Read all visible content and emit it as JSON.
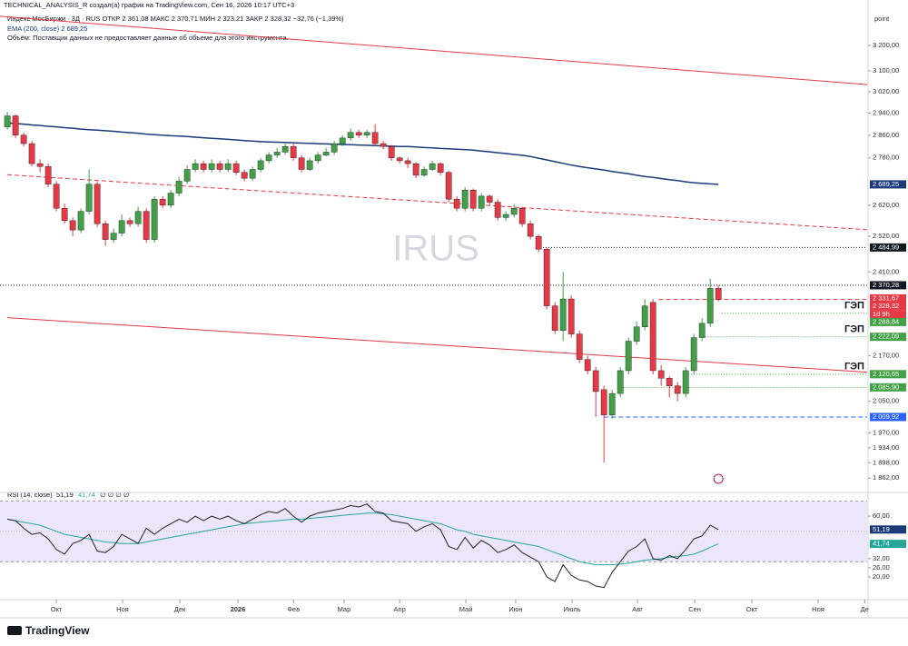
{
  "chart_data": {
    "type": "candlestick",
    "attribution": "TECHNICAL_ANALYSIS_R создал(а) график на TradingView.com, Сен 16, 2026 10:17 UTC+3",
    "legend": "Индекс МосБиржи · 3Д · RUS   ОТКР 2 361,08   МАКС 2 370,71   МИН 2 323,21   ЗАКР 2 328,32   −32,76 (−1,39%)",
    "ema_legend": "EMA (200, close)   2 689,25",
    "volume_note": "Объём: Поставщик данных не предоставляет данные об объеме для этого инструмента.",
    "watermark": "IRUS",
    "unit": "point",
    "countdown": "1d 9h",
    "logo": "TradingView",
    "log_scale": true,
    "up_color": "#43a047",
    "down_color": "#e53945",
    "xlim": [
      -0.9,
      105.2
    ],
    "ylim": [
      1833,
      3349
    ],
    "xticks": [
      {
        "value": 6,
        "label": "Окт"
      },
      {
        "value": 14.1,
        "label": "Ноя"
      },
      {
        "value": 21.1,
        "label": "Дек"
      },
      {
        "value": 28.2,
        "label": "2026"
      },
      {
        "value": 35,
        "label": "Фев"
      },
      {
        "value": 41.2,
        "label": "Мар"
      },
      {
        "value": 48,
        "label": "Апр"
      },
      {
        "value": 56.1,
        "label": "Май"
      },
      {
        "value": 62.2,
        "label": "Июн"
      },
      {
        "value": 69.1,
        "label": "Июль"
      },
      {
        "value": 77.1,
        "label": "Авг"
      },
      {
        "value": 84.1,
        "label": "Сен"
      },
      {
        "value": 91.1,
        "label": "Окт"
      },
      {
        "value": 99.2,
        "label": "Ноя"
      },
      {
        "value": 104.9,
        "label": "Де"
      }
    ],
    "yticks": [
      {
        "value": 1862,
        "label": "1 862,00"
      },
      {
        "value": 1898,
        "label": "1 898,00"
      },
      {
        "value": 1934,
        "label": "1 934,00"
      },
      {
        "value": 1970,
        "label": "1 970,00"
      },
      {
        "value": 2050,
        "label": "2 050,00"
      },
      {
        "value": 2170,
        "label": "2 170,00"
      },
      {
        "value": 2410,
        "label": "2 410,00"
      },
      {
        "value": 2520,
        "label": "2 520,00"
      },
      {
        "value": 2620,
        "label": "2 620,00"
      },
      {
        "value": 2780,
        "label": "2 780,00"
      },
      {
        "value": 2860,
        "label": "2 860,00"
      },
      {
        "value": 2940,
        "label": "2 940,00"
      },
      {
        "value": 3020,
        "label": "3 020,00"
      },
      {
        "value": 3100,
        "label": "3 100,00"
      },
      {
        "value": 3200,
        "label": "3 200,00"
      }
    ],
    "open": [
      2890,
      2930,
      2860,
      2830,
      2760,
      2750,
      2690,
      2610,
      2570,
      2540,
      2600,
      2690,
      2560,
      2510,
      2530,
      2570,
      2560,
      2600,
      2510,
      2640,
      2620,
      2660,
      2700,
      2740,
      2760,
      2740,
      2760,
      2740,
      2760,
      2730,
      2710,
      2740,
      2770,
      2790,
      2800,
      2820,
      2780,
      2740,
      2770,
      2790,
      2800,
      2830,
      2850,
      2870,
      2860,
      2870,
      2830,
      2820,
      2780,
      2770,
      2760,
      2720,
      2740,
      2760,
      2730,
      2640,
      2610,
      2670,
      2610,
      2650,
      2630,
      2580,
      2590,
      2610,
      2560,
      2520,
      2480,
      2310,
      2240,
      2330,
      2230,
      2160,
      2130,
      2080,
      2015,
      2070,
      2130,
      2210,
      2250,
      2320,
      2130,
      2110,
      2090,
      2070,
      2130,
      2220,
      2260,
      2361.08
    ],
    "high": [
      2945,
      2935,
      2870,
      2840,
      2775,
      2760,
      2700,
      2625,
      2580,
      2610,
      2740,
      2700,
      2570,
      2545,
      2590,
      2580,
      2615,
      2610,
      2650,
      2650,
      2670,
      2715,
      2755,
      2775,
      2770,
      2775,
      2770,
      2775,
      2770,
      2740,
      2750,
      2780,
      2800,
      2815,
      2835,
      2830,
      2790,
      2780,
      2800,
      2815,
      2840,
      2860,
      2885,
      2880,
      2880,
      2900,
      2840,
      2825,
      2785,
      2780,
      2765,
      2750,
      2770,
      2765,
      2735,
      2650,
      2680,
      2675,
      2660,
      2655,
      2640,
      2600,
      2625,
      2615,
      2570,
      2525,
      2485,
      2320,
      2410,
      2340,
      2240,
      2170,
      2140,
      2090,
      2080,
      2140,
      2220,
      2265,
      2330,
      2330,
      2145,
      2115,
      2100,
      2140,
      2230,
      2275,
      2390,
      2370.71
    ],
    "low": [
      2880,
      2850,
      2820,
      2750,
      2730,
      2680,
      2600,
      2560,
      2520,
      2530,
      2590,
      2550,
      2490,
      2500,
      2520,
      2550,
      2550,
      2500,
      2500,
      2610,
      2610,
      2650,
      2690,
      2730,
      2730,
      2730,
      2730,
      2730,
      2720,
      2700,
      2700,
      2730,
      2760,
      2780,
      2790,
      2770,
      2730,
      2735,
      2760,
      2785,
      2790,
      2820,
      2840,
      2850,
      2850,
      2820,
      2810,
      2770,
      2760,
      2745,
      2710,
      2715,
      2735,
      2720,
      2630,
      2600,
      2600,
      2600,
      2600,
      2620,
      2570,
      2570,
      2580,
      2550,
      2510,
      2470,
      2300,
      2230,
      2210,
      2220,
      2150,
      2120,
      2010,
      1898,
      2005,
      2060,
      2120,
      2200,
      2240,
      2120,
      2090,
      2060,
      2050,
      2060,
      2120,
      2210,
      2250,
      2323.21
    ],
    "close": [
      2930,
      2860,
      2830,
      2760,
      2750,
      2690,
      2610,
      2570,
      2540,
      2600,
      2690,
      2560,
      2510,
      2530,
      2570,
      2560,
      2600,
      2510,
      2640,
      2620,
      2660,
      2700,
      2740,
      2760,
      2740,
      2760,
      2740,
      2760,
      2730,
      2710,
      2740,
      2770,
      2790,
      2800,
      2820,
      2780,
      2740,
      2770,
      2790,
      2800,
      2830,
      2850,
      2870,
      2860,
      2870,
      2830,
      2820,
      2780,
      2770,
      2760,
      2720,
      2740,
      2760,
      2730,
      2640,
      2610,
      2670,
      2610,
      2650,
      2630,
      2580,
      2590,
      2610,
      2560,
      2520,
      2480,
      2310,
      2240,
      2330,
      2230,
      2160,
      2130,
      2075,
      2015,
      2070,
      2130,
      2210,
      2250,
      2310,
      2130,
      2110,
      2090,
      2070,
      2130,
      2220,
      2260,
      2361.08,
      2328.32
    ],
    "ema": {
      "color": "#1a3a7a",
      "values": [
        2905,
        2902,
        2900,
        2897,
        2895,
        2892,
        2890,
        2887,
        2885,
        2882,
        2880,
        2878,
        2876,
        2874,
        2871,
        2869,
        2867,
        2864,
        2862,
        2860,
        2858,
        2857,
        2855,
        2853,
        2851,
        2849,
        2847,
        2845,
        2843,
        2841,
        2839,
        2837,
        2836,
        2835,
        2834,
        2833,
        2832,
        2831,
        2830,
        2829,
        2828,
        2827,
        2826,
        2825,
        2824,
        2823,
        2822,
        2821,
        2820,
        2820,
        2818,
        2816,
        2815,
        2813,
        2812,
        2810,
        2809,
        2807,
        2804,
        2801,
        2798,
        2795,
        2792,
        2789,
        2785,
        2779,
        2773,
        2767,
        2761,
        2755,
        2750,
        2746,
        2742,
        2738,
        2733,
        2729,
        2725,
        2720,
        2716,
        2713,
        2709,
        2705,
        2702,
        2698,
        2695,
        2693,
        2691,
        2689.25
      ]
    },
    "trend_lines": [
      {
        "color": "#e53945",
        "style": "solid",
        "x": [
          -0.9,
          105.2
        ],
        "y": [
          3319,
          3047
        ]
      },
      {
        "color": "#e53945",
        "style": "dashed",
        "x": [
          0,
          105.2
        ],
        "y": [
          2722,
          2541
        ]
      },
      {
        "color": "#e53945",
        "style": "solid",
        "x": [
          0,
          105.2
        ],
        "y": [
          2276,
          2126
        ]
      }
    ],
    "price_lines": [
      {
        "value": 2689.25,
        "label": "2 689,25",
        "color": "#1a3a7a",
        "style": "none",
        "from": 87
      },
      {
        "value": 2484.99,
        "label": "2 484,99",
        "color": "#131722",
        "style": "dotted",
        "from": 65.2
      },
      {
        "value": 2370.28,
        "label": "2 370,28",
        "color": "#131722",
        "style": "dotted",
        "from": -0.9
      },
      {
        "value": 2331.67,
        "label": "2 331,67",
        "color": "#e53945",
        "style": "none",
        "from": 87
      },
      {
        "value": 2328.32,
        "label": "2 328,32",
        "color": "#e53945",
        "style": "dashed",
        "from": 79.7
      },
      {
        "value": 2288.84,
        "label": "2 288,84",
        "color": "#43a047",
        "style": "dotted",
        "from": 87.4
      },
      {
        "value": 2222.09,
        "label": "2 222,09",
        "color": "#43a047",
        "style": "dotted",
        "from": 84.7
      },
      {
        "value": 2120.65,
        "label": "2 120,65",
        "color": "#43a047",
        "style": "dotted",
        "from": 83
      },
      {
        "value": 2085.9,
        "label": "2 085,90",
        "color": "#43a047",
        "style": "dotted",
        "from": 74.7
      },
      {
        "value": 2009.92,
        "label": "2 009,92",
        "color": "#2962ff",
        "style": "dashed",
        "from": 73
      }
    ],
    "annotations": [
      "ГЭП",
      "ГЭП",
      "ГЭП"
    ],
    "rsi": {
      "legend": "RSI (14, close)",
      "value_label": "51,19",
      "ma_label": "41,74",
      "extra": "∅ ∅ ∅ ∅",
      "color": "#222",
      "ma_color": "#26a6a0",
      "band_color": "#ece6fa",
      "band": [
        30,
        70
      ],
      "ylim": [
        8,
        72
      ],
      "yticks": [
        {
          "value": 60,
          "label": "60,00"
        },
        {
          "value": 32,
          "label": "32,00"
        },
        {
          "value": 26,
          "label": "26,00"
        },
        {
          "value": 20,
          "label": "20,00"
        }
      ],
      "values": [
        58,
        57,
        52,
        48,
        49,
        45,
        38,
        35,
        42,
        44,
        48,
        37,
        36,
        40,
        48,
        45,
        42,
        52,
        48,
        52,
        55,
        58,
        56,
        60,
        57,
        60,
        58,
        60,
        57,
        55,
        58,
        61,
        63,
        62,
        65,
        60,
        56,
        60,
        62,
        63,
        64,
        65,
        67,
        66,
        68,
        63,
        62,
        57,
        56,
        55,
        50,
        53,
        55,
        51,
        40,
        38,
        46,
        39,
        44,
        41,
        36,
        38,
        41,
        36,
        33,
        30,
        20,
        17,
        28,
        21,
        18,
        17,
        14,
        13,
        23,
        30,
        37,
        40,
        45,
        32,
        31,
        34,
        32,
        38,
        45,
        47,
        54,
        51.19
      ],
      "ma": [
        58,
        57,
        56,
        55,
        54,
        52,
        50,
        48,
        47,
        46,
        45,
        44,
        43,
        42.5,
        42,
        42,
        42,
        43,
        44,
        45,
        46,
        47,
        48,
        49,
        50,
        51,
        52,
        53,
        54,
        55,
        55.5,
        56,
        56.5,
        57,
        57.5,
        58,
        58,
        58.5,
        59,
        59.5,
        60,
        60.5,
        61,
        61.5,
        62,
        62,
        61.5,
        61,
        60,
        59,
        58,
        57,
        56,
        55,
        53,
        51,
        50,
        48,
        47,
        46,
        45,
        44,
        43,
        42,
        41,
        40,
        38,
        36,
        34,
        32,
        30,
        29,
        28,
        28,
        28,
        28.5,
        29,
        30,
        31,
        31.5,
        32,
        33,
        33.5,
        34,
        35,
        37,
        39.5,
        41.74
      ]
    }
  }
}
